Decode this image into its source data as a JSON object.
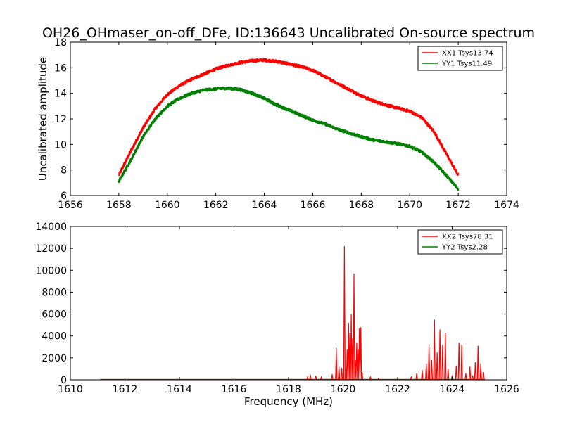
{
  "title": "OH26_OHmaser_on-off_DFe, ID:136643 Uncalibrated On-source spectrum",
  "chart_data": [
    {
      "type": "line",
      "xlabel": "",
      "ylabel": "Uncalibrated amplitude",
      "xlim": [
        1656,
        1674
      ],
      "ylim": [
        6,
        18
      ],
      "xticks": [
        1656,
        1658,
        1660,
        1662,
        1664,
        1666,
        1668,
        1670,
        1672,
        1674
      ],
      "yticks": [
        6,
        8,
        10,
        12,
        14,
        16,
        18
      ],
      "legend": "top-right",
      "series": [
        {
          "name": "XX1 Tsys13.74",
          "color": "#ff0000",
          "x": [
            1658,
            1658.5,
            1659,
            1659.5,
            1660,
            1660.5,
            1661,
            1661.5,
            1662,
            1662.5,
            1663,
            1663.5,
            1664,
            1664.5,
            1665,
            1665.5,
            1666,
            1666.5,
            1667,
            1667.5,
            1668,
            1668.5,
            1669,
            1669.5,
            1670,
            1670.5,
            1671,
            1671.5,
            1672
          ],
          "y": [
            7.6,
            9.5,
            11.3,
            12.8,
            13.9,
            14.6,
            15.1,
            15.5,
            15.9,
            16.2,
            16.4,
            16.55,
            16.6,
            16.5,
            16.3,
            16.1,
            15.8,
            15.3,
            14.8,
            14.3,
            13.8,
            13.4,
            13.1,
            12.85,
            12.6,
            12.1,
            11.0,
            9.3,
            7.6
          ]
        },
        {
          "name": "YY1 Tsys11.49",
          "color": "#008000",
          "x": [
            1658,
            1658.5,
            1659,
            1659.5,
            1660,
            1660.5,
            1661,
            1661.5,
            1662,
            1662.5,
            1663,
            1663.5,
            1664,
            1664.5,
            1665,
            1665.5,
            1666,
            1666.5,
            1667,
            1667.5,
            1668,
            1668.5,
            1669,
            1669.5,
            1670,
            1670.5,
            1671,
            1671.5,
            1672
          ],
          "y": [
            7.1,
            8.8,
            10.6,
            12.0,
            13.0,
            13.6,
            14.0,
            14.25,
            14.35,
            14.4,
            14.3,
            14.0,
            13.6,
            13.1,
            12.7,
            12.3,
            11.9,
            11.6,
            11.2,
            10.9,
            10.6,
            10.35,
            10.2,
            10.05,
            9.85,
            9.4,
            8.6,
            7.6,
            6.5
          ]
        }
      ]
    },
    {
      "type": "line",
      "xlabel": "Frequency (MHz)",
      "ylabel": "",
      "xlim": [
        1610,
        1626
      ],
      "ylim": [
        0,
        14000
      ],
      "xticks": [
        1610,
        1612,
        1614,
        1616,
        1618,
        1620,
        1622,
        1624,
        1626
      ],
      "yticks": [
        0,
        2000,
        4000,
        6000,
        8000,
        10000,
        12000,
        14000
      ],
      "legend": "top-right",
      "series": [
        {
          "name": "XX2 Tsys78.31",
          "color": "#ff0000",
          "x": [
            1611.1,
            1618.0,
            1618.7,
            1618.8,
            1619.0,
            1619.2,
            1619.6,
            1619.75,
            1619.85,
            1619.95,
            1620.05,
            1620.15,
            1620.2,
            1620.25,
            1620.3,
            1620.35,
            1620.4,
            1620.45,
            1620.5,
            1620.55,
            1620.6,
            1620.65,
            1620.7,
            1621.0,
            1621.3,
            1622.0,
            1622.5,
            1622.7,
            1622.9,
            1623.05,
            1623.15,
            1623.25,
            1623.35,
            1623.45,
            1623.55,
            1623.65,
            1623.75,
            1623.85,
            1624.0,
            1624.15,
            1624.25,
            1624.35,
            1624.5,
            1624.65,
            1624.75,
            1624.85,
            1624.95,
            1625.05,
            1625.15
          ],
          "y": [
            30,
            40,
            250,
            450,
            350,
            250,
            500,
            2900,
            1200,
            1100,
            12200,
            2800,
            5200,
            4300,
            6000,
            3800,
            9700,
            1800,
            3400,
            2800,
            4700,
            4800,
            700,
            250,
            150,
            80,
            300,
            600,
            900,
            1500,
            3300,
            1800,
            5500,
            2500,
            4600,
            3200,
            4300,
            1000,
            400,
            1300,
            3400,
            3200,
            600,
            1200,
            400,
            1600,
            3100,
            1500,
            700
          ]
        },
        {
          "name": "YY2 Tsys2.28",
          "color": "#008000",
          "x": [
            1611.1,
            1625.2
          ],
          "y": [
            30,
            30
          ]
        }
      ]
    }
  ]
}
